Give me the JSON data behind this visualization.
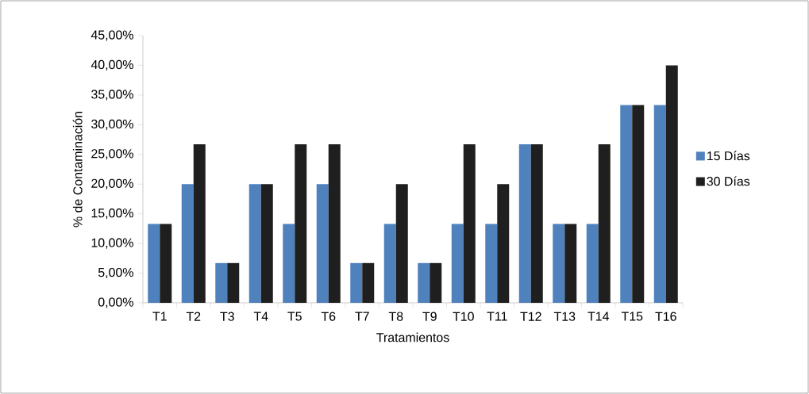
{
  "chart_data": {
    "type": "bar",
    "xlabel": "Tratamientos",
    "ylabel": "% de Contaminación",
    "categories": [
      "T1",
      "T2",
      "T3",
      "T4",
      "T5",
      "T6",
      "T7",
      "T8",
      "T9",
      "T10",
      "T11",
      "T12",
      "T13",
      "T14",
      "T15",
      "T16"
    ],
    "series": [
      {
        "name": "15 Días",
        "color": "#4f81bd",
        "values": [
          13.3,
          20,
          6.7,
          20,
          13.3,
          20,
          6.7,
          13.3,
          6.7,
          13.3,
          13.3,
          26.7,
          13.3,
          13.3,
          33.3,
          33.3
        ]
      },
      {
        "name": "30 Días",
        "color": "#1f1f1f",
        "values": [
          13.3,
          26.7,
          6.7,
          20,
          26.7,
          26.7,
          6.7,
          20,
          6.7,
          26.7,
          20,
          26.7,
          13.3,
          26.7,
          33.3,
          40
        ]
      }
    ],
    "ylim": [
      0,
      45
    ],
    "yticks": [
      {
        "value": 0,
        "label": "0,00%"
      },
      {
        "value": 5,
        "label": "5,00%"
      },
      {
        "value": 10,
        "label": "10,00%"
      },
      {
        "value": 15,
        "label": "15,00%"
      },
      {
        "value": 20,
        "label": "20,00%"
      },
      {
        "value": 25,
        "label": "25,00%"
      },
      {
        "value": 30,
        "label": "30,00%"
      },
      {
        "value": 35,
        "label": "35,00%"
      },
      {
        "value": 40,
        "label": "40,00%"
      },
      {
        "value": 45,
        "label": "45,00%"
      }
    ],
    "grid": false,
    "legend": "right"
  }
}
